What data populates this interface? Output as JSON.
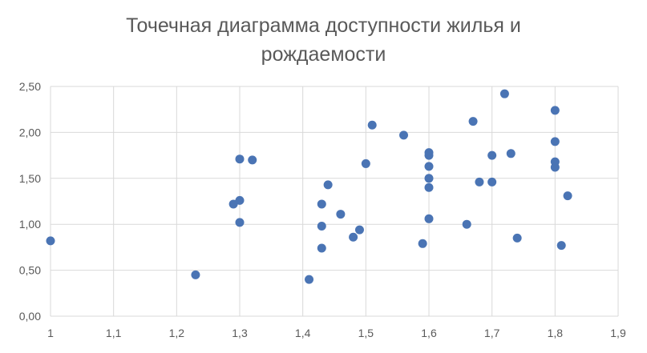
{
  "chart_data": {
    "type": "scatter",
    "title_lines": [
      "Точечная диаграмма доступности жилья и",
      "рождаемости"
    ],
    "xlabel": "",
    "ylabel": "",
    "xlim": [
      1,
      1.9
    ],
    "ylim": [
      0,
      2.5
    ],
    "x_ticks": [
      "1",
      "1,1",
      "1,2",
      "1,3",
      "1,4",
      "1,5",
      "1,6",
      "1,7",
      "1,8",
      "1,9"
    ],
    "y_ticks": [
      "0,00",
      "0,50",
      "1,00",
      "1,50",
      "2,00",
      "2,50"
    ],
    "grid": true,
    "legend": "none",
    "color": "#4a74b4",
    "points": [
      {
        "x": 1.0,
        "y": 0.82
      },
      {
        "x": 1.23,
        "y": 0.45
      },
      {
        "x": 1.29,
        "y": 1.22
      },
      {
        "x": 1.3,
        "y": 1.71
      },
      {
        "x": 1.3,
        "y": 1.26
      },
      {
        "x": 1.3,
        "y": 1.02
      },
      {
        "x": 1.32,
        "y": 1.7
      },
      {
        "x": 1.41,
        "y": 0.4
      },
      {
        "x": 1.43,
        "y": 1.22
      },
      {
        "x": 1.43,
        "y": 0.98
      },
      {
        "x": 1.43,
        "y": 0.74
      },
      {
        "x": 1.44,
        "y": 1.43
      },
      {
        "x": 1.46,
        "y": 1.11
      },
      {
        "x": 1.48,
        "y": 0.86
      },
      {
        "x": 1.49,
        "y": 0.94
      },
      {
        "x": 1.5,
        "y": 1.66
      },
      {
        "x": 1.51,
        "y": 2.08
      },
      {
        "x": 1.56,
        "y": 1.97
      },
      {
        "x": 1.59,
        "y": 0.79
      },
      {
        "x": 1.6,
        "y": 1.78
      },
      {
        "x": 1.6,
        "y": 1.75
      },
      {
        "x": 1.6,
        "y": 1.63
      },
      {
        "x": 1.6,
        "y": 1.5
      },
      {
        "x": 1.6,
        "y": 1.4
      },
      {
        "x": 1.6,
        "y": 1.06
      },
      {
        "x": 1.66,
        "y": 1.0
      },
      {
        "x": 1.67,
        "y": 2.12
      },
      {
        "x": 1.68,
        "y": 1.46
      },
      {
        "x": 1.7,
        "y": 1.75
      },
      {
        "x": 1.7,
        "y": 1.46
      },
      {
        "x": 1.72,
        "y": 2.42
      },
      {
        "x": 1.73,
        "y": 1.77
      },
      {
        "x": 1.74,
        "y": 0.85
      },
      {
        "x": 1.8,
        "y": 2.24
      },
      {
        "x": 1.8,
        "y": 1.9
      },
      {
        "x": 1.8,
        "y": 1.68
      },
      {
        "x": 1.8,
        "y": 1.62
      },
      {
        "x": 1.81,
        "y": 0.77
      },
      {
        "x": 1.82,
        "y": 1.31
      }
    ]
  }
}
